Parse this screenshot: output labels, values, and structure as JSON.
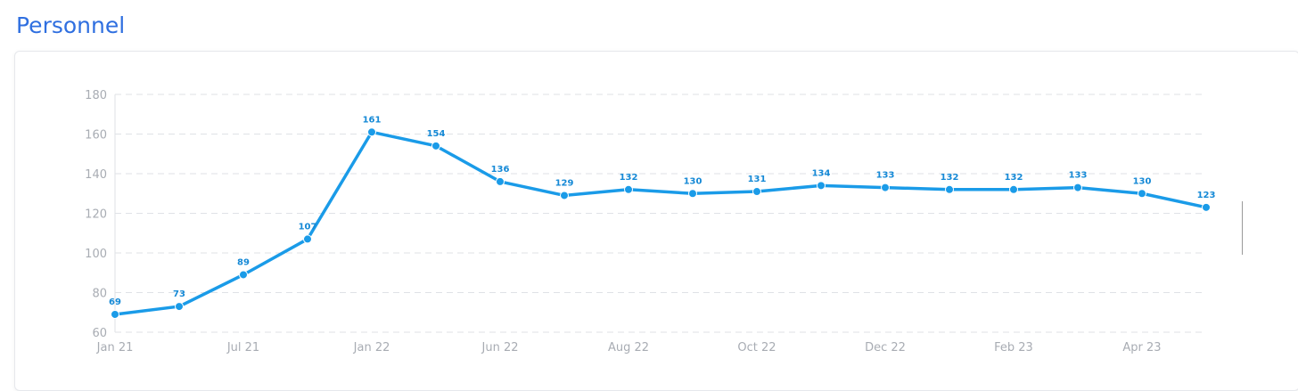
{
  "page": {
    "title": "Personnel"
  },
  "colors": {
    "title": "#2f6fe0",
    "line": "#1a9be8",
    "label": "#1589d6",
    "grid": "#dfe2e6",
    "tick": "#a8acb3"
  },
  "chart_data": {
    "type": "line",
    "title": "",
    "xlabel": "",
    "ylabel": "",
    "ylim": [
      60,
      180
    ],
    "yticks": [
      60,
      80,
      100,
      120,
      140,
      160,
      180
    ],
    "grid": true,
    "x_tick_labels": [
      "Jan 21",
      "Jul 21",
      "Jan 22",
      "Jun 22",
      "Aug 22",
      "Oct 22",
      "Dec 22",
      "Feb 23",
      "Apr 23"
    ],
    "x_tick_positions": [
      0,
      2,
      4,
      6,
      8,
      10,
      12,
      14,
      16
    ],
    "series": [
      {
        "name": "",
        "values": [
          69,
          73,
          89,
          107,
          161,
          154,
          136,
          129,
          132,
          130,
          131,
          134,
          133,
          132,
          132,
          133,
          130,
          123
        ]
      }
    ]
  }
}
